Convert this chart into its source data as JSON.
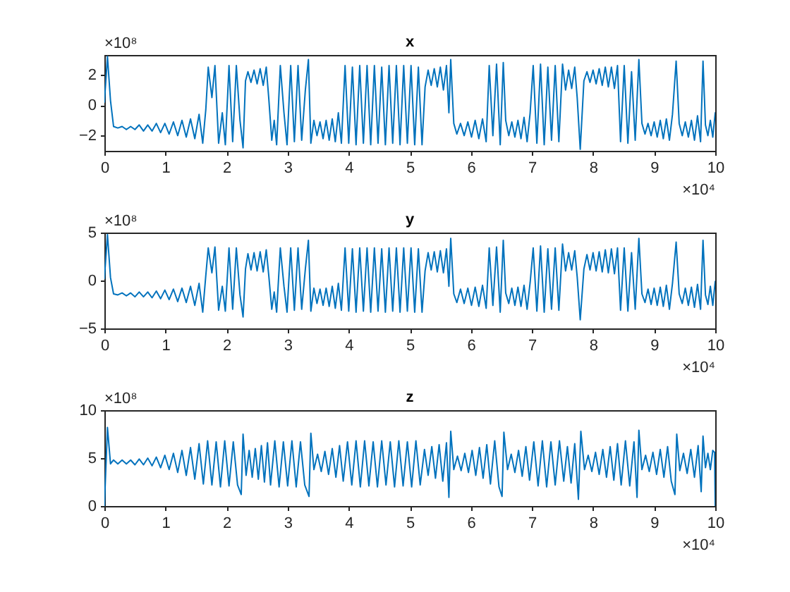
{
  "chart_data": [
    {
      "type": "line",
      "title": "x",
      "xlim": [
        0,
        10
      ],
      "ylim": [
        -3,
        3.3
      ],
      "xticks": [
        0,
        1,
        2,
        3,
        4,
        5,
        6,
        7,
        8,
        9,
        10
      ],
      "yticks": [
        -2,
        0,
        2
      ],
      "grid": false,
      "annotations": [
        "×10⁸",
        "×10⁴"
      ],
      "x": [
        0,
        0.05,
        0.1,
        0.15,
        0.22,
        0.29,
        0.36,
        0.43,
        0.5,
        0.57,
        0.64,
        0.71,
        0.78,
        0.85,
        0.92,
        0.99,
        1.06,
        1.13,
        1.2,
        1.27,
        1.34,
        1.41,
        1.48,
        1.55,
        1.61,
        1.66,
        1.7,
        1.76,
        1.81,
        1.87,
        1.93,
        1.98,
        2.04,
        2.1,
        2.16,
        2.22,
        2.27,
        2.31,
        2.35,
        2.4,
        2.45,
        2.5,
        2.55,
        2.6,
        2.65,
        2.69,
        2.74,
        2.78,
        2.82,
        2.88,
        2.94,
        2.99,
        3.05,
        3.11,
        3.17,
        3.23,
        3.29,
        3.34,
        3.38,
        3.43,
        3.48,
        3.53,
        3.58,
        3.63,
        3.68,
        3.73,
        3.78,
        3.83,
        3.88,
        3.94,
        4.0,
        4.06,
        4.12,
        4.18,
        4.24,
        4.3,
        4.36,
        4.42,
        4.48,
        4.54,
        4.6,
        4.66,
        4.72,
        4.78,
        4.84,
        4.9,
        4.96,
        5.02,
        5.08,
        5.14,
        5.2,
        5.25,
        5.3,
        5.35,
        5.4,
        5.45,
        5.5,
        5.55,
        5.6,
        5.64,
        5.67,
        5.72,
        5.77,
        5.83,
        5.89,
        5.95,
        6.01,
        6.07,
        6.13,
        6.19,
        6.25,
        6.3,
        6.36,
        6.42,
        6.48,
        6.53,
        6.57,
        6.62,
        6.67,
        6.72,
        6.77,
        6.82,
        6.87,
        6.92,
        6.97,
        7.02,
        7.08,
        7.14,
        7.2,
        7.26,
        7.32,
        7.38,
        7.44,
        7.5,
        7.55,
        7.6,
        7.65,
        7.7,
        7.74,
        7.79,
        7.85,
        7.9,
        7.95,
        8.0,
        8.05,
        8.1,
        8.15,
        8.2,
        8.25,
        8.3,
        8.35,
        8.4,
        8.45,
        8.51,
        8.57,
        8.63,
        8.69,
        8.75,
        8.8,
        8.85,
        8.9,
        8.95,
        9.0,
        9.05,
        9.1,
        9.15,
        9.2,
        9.25,
        9.3,
        9.36,
        9.41,
        9.46,
        9.51,
        9.56,
        9.61,
        9.66,
        9.71,
        9.76,
        9.8,
        9.84,
        9.88,
        9.92,
        9.96,
        10
      ],
      "series": [
        {
          "color": "#0072bd",
          "values": [
            0.2,
            3.2,
            0.3,
            -1.4,
            -1.5,
            -1.4,
            -1.6,
            -1.4,
            -1.6,
            -1.3,
            -1.7,
            -1.3,
            -1.7,
            -1.2,
            -1.8,
            -1.2,
            -1.9,
            -1.1,
            -2.0,
            -1.0,
            -2.1,
            -0.9,
            -2.2,
            -0.6,
            -2.5,
            -0.3,
            2.5,
            0.5,
            2.6,
            -2.5,
            -0.5,
            -2.6,
            2.6,
            -2.4,
            2.6,
            -1.0,
            -2.8,
            1.6,
            2.2,
            1.5,
            2.3,
            1.4,
            2.4,
            1.3,
            2.5,
            0.5,
            -2.3,
            -1.0,
            -2.6,
            2.6,
            -0.5,
            -2.6,
            2.6,
            -2.4,
            2.6,
            -2.3,
            1.0,
            3.0,
            -2.5,
            -1.0,
            -2.0,
            -1.1,
            -2.2,
            -1.0,
            -2.3,
            -0.9,
            -2.4,
            -0.5,
            -2.5,
            2.6,
            -2.5,
            2.5,
            -2.6,
            2.6,
            -2.5,
            2.6,
            -2.6,
            2.6,
            -2.5,
            2.5,
            -2.6,
            2.6,
            -2.5,
            2.6,
            -2.6,
            2.6,
            -2.5,
            2.6,
            -2.6,
            2.5,
            -2.6,
            1.2,
            2.3,
            1.3,
            2.4,
            1.2,
            2.5,
            1.0,
            2.6,
            -0.5,
            3.0,
            -1.2,
            -1.9,
            -1.2,
            -2.0,
            -1.1,
            -2.1,
            -1.0,
            -2.2,
            -0.9,
            -2.4,
            2.6,
            -2.0,
            2.7,
            -2.6,
            2.8,
            -1.0,
            -2.0,
            -1.1,
            -2.1,
            -1.0,
            -2.2,
            -0.8,
            -2.4,
            -0.5,
            2.6,
            -2.5,
            2.7,
            -2.6,
            2.5,
            -2.3,
            2.6,
            -2.4,
            2.7,
            1.0,
            2.3,
            1.1,
            2.5,
            0.5,
            -2.9,
            1.6,
            2.2,
            1.5,
            2.3,
            1.4,
            2.4,
            1.3,
            2.5,
            1.2,
            2.5,
            1.1,
            2.6,
            -2.4,
            2.6,
            -2.5,
            2.2,
            -2.3,
            3.0,
            -1.2,
            -1.9,
            -1.2,
            -2.0,
            -1.1,
            -2.1,
            -1.0,
            -2.2,
            -0.9,
            -2.3,
            -0.6,
            2.9,
            -1.2,
            -2.0,
            -1.1,
            -2.1,
            -1.0,
            -2.3,
            -0.7,
            -2.4,
            2.9,
            -1.3,
            -2.0,
            -1.0,
            -2.1,
            -0.5
          ]
        }
      ]
    },
    {
      "type": "line",
      "title": "y",
      "xlim": [
        0,
        10
      ],
      "ylim": [
        -5,
        5
      ],
      "xticks": [
        0,
        1,
        2,
        3,
        4,
        5,
        6,
        7,
        8,
        9,
        10
      ],
      "yticks": [
        -5,
        0,
        5
      ],
      "grid": false,
      "annotations": [
        "×10⁸",
        "×10⁴"
      ],
      "x": [
        0,
        0.05,
        0.1,
        0.15,
        0.22,
        0.29,
        0.36,
        0.43,
        0.5,
        0.57,
        0.64,
        0.71,
        0.78,
        0.85,
        0.92,
        0.99,
        1.06,
        1.13,
        1.2,
        1.27,
        1.34,
        1.41,
        1.48,
        1.55,
        1.61,
        1.66,
        1.7,
        1.76,
        1.81,
        1.87,
        1.93,
        1.98,
        2.04,
        2.1,
        2.16,
        2.22,
        2.27,
        2.31,
        2.35,
        2.4,
        2.45,
        2.5,
        2.55,
        2.6,
        2.65,
        2.69,
        2.74,
        2.78,
        2.82,
        2.88,
        2.94,
        2.99,
        3.05,
        3.11,
        3.17,
        3.23,
        3.29,
        3.34,
        3.38,
        3.43,
        3.48,
        3.53,
        3.58,
        3.63,
        3.68,
        3.73,
        3.78,
        3.83,
        3.88,
        3.94,
        4.0,
        4.06,
        4.12,
        4.18,
        4.24,
        4.3,
        4.36,
        4.42,
        4.48,
        4.54,
        4.6,
        4.66,
        4.72,
        4.78,
        4.84,
        4.9,
        4.96,
        5.02,
        5.08,
        5.14,
        5.2,
        5.25,
        5.3,
        5.35,
        5.4,
        5.45,
        5.5,
        5.55,
        5.6,
        5.64,
        5.67,
        5.72,
        5.77,
        5.83,
        5.89,
        5.95,
        6.01,
        6.07,
        6.13,
        6.19,
        6.25,
        6.3,
        6.36,
        6.42,
        6.48,
        6.53,
        6.57,
        6.62,
        6.67,
        6.72,
        6.77,
        6.82,
        6.87,
        6.92,
        6.97,
        7.02,
        7.08,
        7.14,
        7.2,
        7.26,
        7.32,
        7.38,
        7.44,
        7.5,
        7.55,
        7.6,
        7.65,
        7.7,
        7.74,
        7.79,
        7.85,
        7.9,
        7.95,
        8.0,
        8.05,
        8.1,
        8.15,
        8.2,
        8.25,
        8.3,
        8.35,
        8.4,
        8.45,
        8.51,
        8.57,
        8.63,
        8.69,
        8.75,
        8.8,
        8.85,
        8.9,
        8.95,
        9.0,
        9.05,
        9.1,
        9.15,
        9.2,
        9.25,
        9.3,
        9.36,
        9.41,
        9.46,
        9.51,
        9.56,
        9.61,
        9.66,
        9.71,
        9.76,
        9.8,
        9.84,
        9.88,
        9.92,
        9.96,
        10
      ],
      "series": [
        {
          "color": "#0072bd",
          "values": [
            0.2,
            4.8,
            0.3,
            -1.4,
            -1.5,
            -1.3,
            -1.6,
            -1.3,
            -1.7,
            -1.2,
            -1.7,
            -1.2,
            -1.8,
            -1.1,
            -1.9,
            -1.0,
            -2.0,
            -0.9,
            -2.2,
            -0.8,
            -2.3,
            -0.6,
            -2.6,
            -0.3,
            -3.3,
            0.5,
            3.4,
            0.8,
            3.5,
            -3.1,
            -0.6,
            -3.2,
            3.4,
            -3.0,
            3.4,
            -1.5,
            -3.8,
            1.2,
            2.8,
            1.1,
            2.9,
            1.0,
            3.0,
            0.9,
            3.2,
            0.6,
            -3.0,
            -1.2,
            -3.3,
            3.4,
            -0.6,
            -3.3,
            3.4,
            -3.1,
            3.4,
            -3.0,
            1.2,
            4.2,
            -3.2,
            -0.8,
            -2.4,
            -0.9,
            -2.6,
            -0.8,
            -2.7,
            -0.6,
            -2.9,
            -0.3,
            -3.1,
            3.4,
            -3.2,
            3.3,
            -3.3,
            3.4,
            -3.2,
            3.4,
            -3.3,
            3.4,
            -3.2,
            3.3,
            -3.3,
            3.4,
            -3.2,
            3.4,
            -3.3,
            3.4,
            -3.2,
            3.4,
            -3.3,
            3.3,
            -3.3,
            1.0,
            2.9,
            1.1,
            3.0,
            0.9,
            3.1,
            0.8,
            3.3,
            -0.6,
            4.4,
            -1.4,
            -2.3,
            -0.9,
            -2.4,
            -0.8,
            -2.6,
            -0.7,
            -2.7,
            -0.5,
            -2.9,
            3.4,
            -2.6,
            3.5,
            -3.3,
            4.2,
            -1.3,
            -2.4,
            -0.8,
            -2.6,
            -0.7,
            -2.7,
            -0.5,
            -3.0,
            -0.2,
            3.4,
            -3.2,
            3.6,
            -3.3,
            3.3,
            -3.0,
            3.4,
            -3.1,
            3.8,
            1.0,
            2.9,
            1.1,
            3.1,
            0.4,
            -4.1,
            1.2,
            2.7,
            1.1,
            2.9,
            1.0,
            3.0,
            0.9,
            3.2,
            0.8,
            3.3,
            0.7,
            3.4,
            -3.1,
            3.4,
            -3.2,
            2.9,
            -3.0,
            4.4,
            -1.4,
            -2.3,
            -0.9,
            -2.5,
            -0.8,
            -2.6,
            -0.7,
            -2.7,
            -0.5,
            -3.0,
            -0.3,
            4.0,
            -1.4,
            -2.4,
            -0.8,
            -2.6,
            -0.7,
            -2.8,
            -0.4,
            -3.0,
            4.2,
            -1.5,
            -2.5,
            -0.6,
            -2.6,
            -0.1
          ]
        }
      ]
    },
    {
      "type": "line",
      "title": "z",
      "xlim": [
        0,
        10
      ],
      "ylim": [
        0,
        10
      ],
      "xticks": [
        0,
        1,
        2,
        3,
        4,
        5,
        6,
        7,
        8,
        9,
        10
      ],
      "yticks": [
        0,
        5,
        10
      ],
      "grid": false,
      "annotations": [
        "×10⁸",
        "×10⁴"
      ],
      "x": [
        0,
        0.05,
        0.1,
        0.15,
        0.22,
        0.29,
        0.36,
        0.43,
        0.5,
        0.57,
        0.64,
        0.71,
        0.78,
        0.85,
        0.92,
        0.99,
        1.06,
        1.13,
        1.2,
        1.27,
        1.34,
        1.41,
        1.48,
        1.55,
        1.62,
        1.69,
        1.76,
        1.83,
        1.9,
        1.97,
        2.04,
        2.11,
        2.18,
        2.24,
        2.27,
        2.32,
        2.37,
        2.42,
        2.47,
        2.52,
        2.57,
        2.62,
        2.67,
        2.72,
        2.79,
        2.86,
        2.93,
        3.0,
        3.07,
        3.14,
        3.21,
        3.28,
        3.35,
        3.38,
        3.43,
        3.49,
        3.55,
        3.61,
        3.67,
        3.73,
        3.79,
        3.85,
        3.91,
        3.98,
        4.05,
        4.12,
        4.19,
        4.26,
        4.33,
        4.4,
        4.47,
        4.54,
        4.61,
        4.68,
        4.75,
        4.82,
        4.89,
        4.96,
        5.03,
        5.1,
        5.17,
        5.24,
        5.3,
        5.36,
        5.42,
        5.48,
        5.54,
        5.6,
        5.64,
        5.67,
        5.72,
        5.78,
        5.84,
        5.9,
        5.96,
        6.02,
        6.08,
        6.14,
        6.2,
        6.26,
        6.32,
        6.39,
        6.46,
        6.51,
        6.54,
        6.6,
        6.66,
        6.72,
        6.78,
        6.84,
        6.9,
        6.96,
        7.03,
        7.1,
        7.17,
        7.24,
        7.31,
        7.38,
        7.45,
        7.52,
        7.58,
        7.64,
        7.7,
        7.76,
        7.8,
        7.86,
        7.92,
        7.98,
        8.04,
        8.1,
        8.16,
        8.22,
        8.28,
        8.34,
        8.4,
        8.46,
        8.53,
        8.6,
        8.67,
        8.72,
        8.75,
        8.8,
        8.86,
        8.92,
        8.98,
        9.04,
        9.1,
        9.16,
        9.22,
        9.28,
        9.34,
        9.37,
        9.42,
        9.48,
        9.54,
        9.6,
        9.66,
        9.72,
        9.77,
        9.8,
        9.84,
        9.88,
        9.92,
        9.96,
        9.99,
        10
      ],
      "series": [
        {
          "color": "#0072bd",
          "values": [
            0,
            8.2,
            4.4,
            4.8,
            4.4,
            4.8,
            4.4,
            4.8,
            4.3,
            4.9,
            4.3,
            5.0,
            4.2,
            5.1,
            4.0,
            5.3,
            3.8,
            5.5,
            3.5,
            5.8,
            3.2,
            6.1,
            2.8,
            6.5,
            2.3,
            6.8,
            2.2,
            6.7,
            2.0,
            6.8,
            2.1,
            6.7,
            2.2,
            1.2,
            7.5,
            3.2,
            5.8,
            3.0,
            6.0,
            2.8,
            6.3,
            2.5,
            6.6,
            2.2,
            6.8,
            2.0,
            6.7,
            2.1,
            6.8,
            2.0,
            6.7,
            2.2,
            1.0,
            7.6,
            3.8,
            5.4,
            3.6,
            5.7,
            3.3,
            6.0,
            3.0,
            6.3,
            2.6,
            6.7,
            2.2,
            6.8,
            2.0,
            6.8,
            2.1,
            6.7,
            2.0,
            6.8,
            2.2,
            6.7,
            2.0,
            6.8,
            2.1,
            6.7,
            2.0,
            6.8,
            2.2,
            5.9,
            3.2,
            6.2,
            2.9,
            6.4,
            2.6,
            6.6,
            0.9,
            7.8,
            3.8,
            5.2,
            3.7,
            5.5,
            3.5,
            5.8,
            3.2,
            6.1,
            2.9,
            6.4,
            2.3,
            6.8,
            2.0,
            1.0,
            7.7,
            3.8,
            5.4,
            3.5,
            5.8,
            3.1,
            6.2,
            2.7,
            6.7,
            2.1,
            6.8,
            2.0,
            6.7,
            2.2,
            6.8,
            2.6,
            6.2,
            2.4,
            6.5,
            0.7,
            7.8,
            3.8,
            5.3,
            3.6,
            5.6,
            3.3,
            5.9,
            3.0,
            6.2,
            2.7,
            6.5,
            2.2,
            6.8,
            2.1,
            6.7,
            0.9,
            7.9,
            3.8,
            5.3,
            3.6,
            5.6,
            3.3,
            5.9,
            3.0,
            6.2,
            2.6,
            1.2,
            7.5,
            3.7,
            5.5,
            3.4,
            5.9,
            3.0,
            6.3,
            1.5,
            7.3,
            4.0,
            5.5,
            3.8,
            5.8,
            5.6,
            0
          ]
        }
      ]
    }
  ]
}
